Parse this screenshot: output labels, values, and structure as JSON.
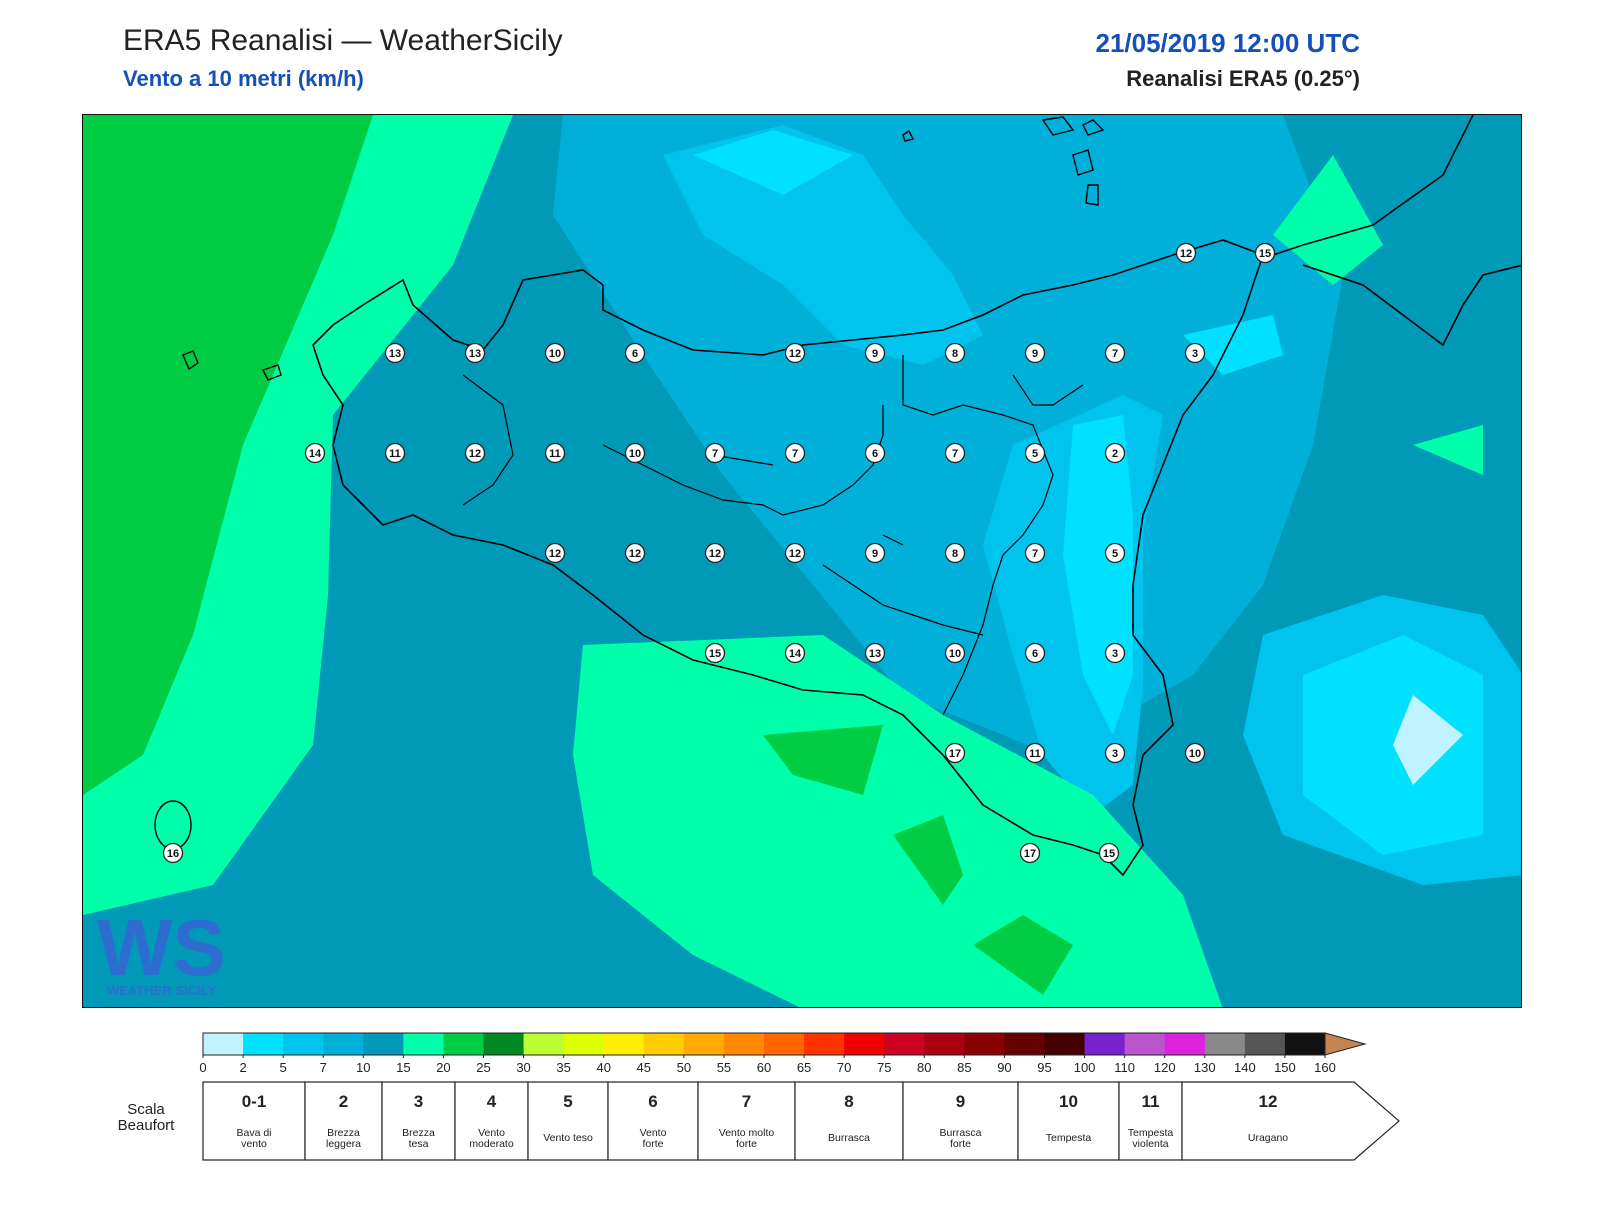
{
  "header": {
    "title": "ERA5 Reanalisi — WeatherSicily",
    "subtitle": "Vento a 10 metri (km/h)",
    "datetime": "21/05/2019 12:00 UTC",
    "model": "Reanalisi ERA5 (0.25°)"
  },
  "logo": {
    "letters": "WS",
    "wordmark": "WEATHER SICILY"
  },
  "colors": {
    "land_outline": "#000000",
    "base": "#0099b8",
    "darkest_field": "#00cc44"
  },
  "wind_values": [
    {
      "v": "13",
      "col": 4,
      "row": 1
    },
    {
      "v": "13",
      "col": 5,
      "row": 1
    },
    {
      "v": "10",
      "col": 6,
      "row": 1
    },
    {
      "v": "6",
      "col": 7,
      "row": 1
    },
    {
      "v": "12",
      "col": 9,
      "row": 1
    },
    {
      "v": "9",
      "col": 10,
      "row": 1
    },
    {
      "v": "8",
      "col": 11,
      "row": 1
    },
    {
      "v": "9",
      "col": 12,
      "row": 1
    },
    {
      "v": "7",
      "col": 13,
      "row": 1
    },
    {
      "v": "3",
      "col": 14,
      "row": 1
    },
    {
      "v": "14",
      "col": 3,
      "row": 2
    },
    {
      "v": "11",
      "col": 4,
      "row": 2
    },
    {
      "v": "12",
      "col": 5,
      "row": 2
    },
    {
      "v": "11",
      "col": 6,
      "row": 2
    },
    {
      "v": "10",
      "col": 7,
      "row": 2
    },
    {
      "v": "7",
      "col": 8,
      "row": 2
    },
    {
      "v": "7",
      "col": 9,
      "row": 2
    },
    {
      "v": "6",
      "col": 10,
      "row": 2
    },
    {
      "v": "7",
      "col": 11,
      "row": 2
    },
    {
      "v": "5",
      "col": 12,
      "row": 2
    },
    {
      "v": "2",
      "col": 13,
      "row": 2
    },
    {
      "v": "12",
      "col": 6,
      "row": 3
    },
    {
      "v": "12",
      "col": 7,
      "row": 3
    },
    {
      "v": "12",
      "col": 8,
      "row": 3
    },
    {
      "v": "12",
      "col": 9,
      "row": 3
    },
    {
      "v": "9",
      "col": 10,
      "row": 3
    },
    {
      "v": "8",
      "col": 11,
      "row": 3
    },
    {
      "v": "7",
      "col": 12,
      "row": 3
    },
    {
      "v": "5",
      "col": 13,
      "row": 3
    },
    {
      "v": "15",
      "col": 8,
      "row": 4
    },
    {
      "v": "14",
      "col": 9,
      "row": 4
    },
    {
      "v": "13",
      "col": 10,
      "row": 4
    },
    {
      "v": "10",
      "col": 11,
      "row": 4
    },
    {
      "v": "6",
      "col": 12,
      "row": 4
    },
    {
      "v": "3",
      "col": 13,
      "row": 4
    },
    {
      "v": "17",
      "col": 11,
      "row": 5
    },
    {
      "v": "11",
      "col": 12,
      "row": 5
    },
    {
      "v": "3",
      "col": 13,
      "row": 5
    },
    {
      "v": "10",
      "col": 14,
      "row": 5
    },
    {
      "v": "17",
      "col": 12,
      "row": 6
    },
    {
      "v": "15",
      "col": 13,
      "row": 6
    },
    {
      "v": "12",
      "col": 14,
      "row": 0
    },
    {
      "v": "15",
      "col": 15,
      "row": 0
    },
    {
      "v": "16",
      "col": 1,
      "row": 6
    }
  ],
  "colorbar": {
    "ticks": [
      "0",
      "2",
      "5",
      "7",
      "10",
      "15",
      "20",
      "25",
      "30",
      "35",
      "40",
      "45",
      "50",
      "55",
      "60",
      "65",
      "70",
      "75",
      "80",
      "85",
      "90",
      "95",
      "100",
      "110",
      "120",
      "130",
      "140",
      "150",
      "160"
    ],
    "colors": [
      "#bff3ff",
      "#00e0ff",
      "#00c4ee",
      "#00b0d8",
      "#0099b8",
      "#00ffaa",
      "#00cc44",
      "#008822",
      "#bbff33",
      "#ddff00",
      "#ffee00",
      "#ffcc00",
      "#ffaa00",
      "#ff8800",
      "#ff6600",
      "#ff3300",
      "#ee0000",
      "#cc0022",
      "#aa0011",
      "#880000",
      "#660000",
      "#440000",
      "#7722cc",
      "#bb55cc",
      "#dd22dd",
      "#888888",
      "#555555",
      "#111111",
      "#7a4a2a",
      "#c8844e"
    ]
  },
  "beaufort": {
    "label": "Scala\nBeaufort",
    "label_line1": "Scala",
    "label_line2": "Beaufort",
    "cells": [
      {
        "num": "0-1",
        "name1": "Bava di",
        "name2": "vento"
      },
      {
        "num": "2",
        "name1": "Brezza",
        "name2": "leggera"
      },
      {
        "num": "3",
        "name1": "Brezza",
        "name2": "tesa"
      },
      {
        "num": "4",
        "name1": "Vento",
        "name2": "moderato"
      },
      {
        "num": "5",
        "name1": "Vento teso",
        "name2": ""
      },
      {
        "num": "6",
        "name1": "Vento",
        "name2": "forte"
      },
      {
        "num": "7",
        "name1": "Vento molto",
        "name2": "forte"
      },
      {
        "num": "8",
        "name1": "Burrasca",
        "name2": ""
      },
      {
        "num": "9",
        "name1": "Burrasca",
        "name2": "forte"
      },
      {
        "num": "10",
        "name1": "Tempesta",
        "name2": ""
      },
      {
        "num": "11",
        "name1": "Tempesta",
        "name2": "violenta"
      },
      {
        "num": "12",
        "name1": "Uragano",
        "name2": ""
      }
    ]
  }
}
